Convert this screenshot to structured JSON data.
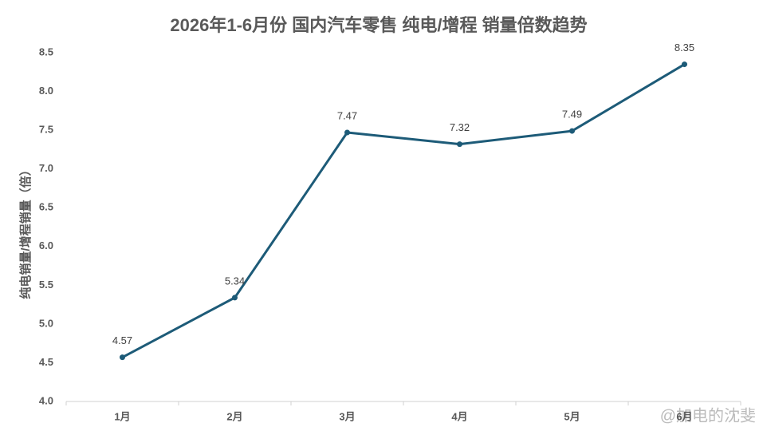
{
  "chart_data": {
    "type": "line",
    "title": "2026年1-6月份 国内汽车零售 纯电/增程 销量倍数趋势",
    "y_label": "纯电销量/增程销量（倍）",
    "categories": [
      "1月",
      "2月",
      "3月",
      "4月",
      "5月",
      "6月"
    ],
    "series": [
      {
        "name": "纯电/增程",
        "color": "#1d5b78",
        "values": [
          4.57,
          5.34,
          7.47,
          7.32,
          7.49,
          8.35
        ]
      }
    ],
    "ylim": [
      4.0,
      8.5
    ],
    "yticks": [
      {
        "value": 4,
        "label": "4.0"
      },
      4.5,
      {
        "value": 5,
        "label": "5.0"
      },
      5.5,
      {
        "value": 6,
        "label": "6.0"
      },
      6.5,
      {
        "value": 7,
        "label": "7.0"
      },
      7.5,
      {
        "value": 8,
        "label": "8.0"
      },
      8.5
    ],
    "grid": false,
    "watermark": "@加电的沈斐"
  }
}
